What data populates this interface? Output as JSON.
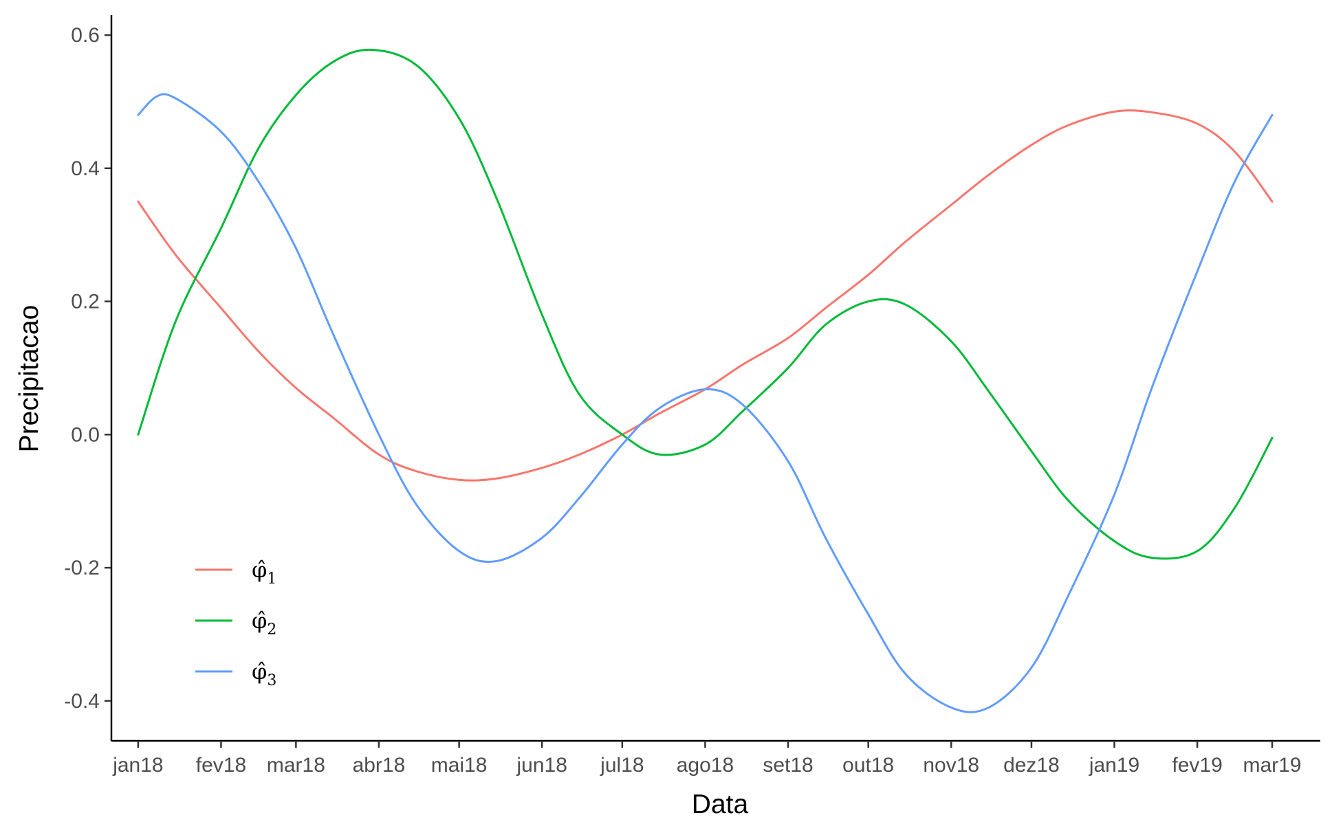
{
  "chart_data": {
    "type": "line",
    "xlabel": "Data",
    "ylabel": "Precipitacao",
    "x_ticks": [
      "jan18",
      "fev18",
      "mar18",
      "abr18",
      "mai18",
      "jun18",
      "jul18",
      "ago18",
      "set18",
      "out18",
      "nov18",
      "dez18",
      "jan19",
      "fev19",
      "mar19"
    ],
    "x_tick_dates": [
      "2018-01-01",
      "2018-02-01",
      "2018-03-01",
      "2018-04-01",
      "2018-05-01",
      "2018-06-01",
      "2018-07-01",
      "2018-08-01",
      "2018-09-01",
      "2018-10-01",
      "2018-11-01",
      "2018-12-01",
      "2019-01-01",
      "2019-02-01",
      "2019-03-01"
    ],
    "y_ticks": [
      "-0.4",
      "-0.2",
      "0.0",
      "0.2",
      "0.4",
      "0.6"
    ],
    "ylim": [
      -0.46,
      0.63
    ],
    "xlim": [
      "2017-12-22",
      "2019-03-19"
    ],
    "grid": false,
    "legend_position": "bottom-left",
    "series": [
      {
        "name": "φ̂1",
        "color": "#F8766D",
        "x": [
          "2018-01-01",
          "2018-01-15",
          "2018-02-01",
          "2018-02-15",
          "2018-03-01",
          "2018-03-15",
          "2018-04-01",
          "2018-04-15",
          "2018-05-01",
          "2018-05-15",
          "2018-06-01",
          "2018-06-15",
          "2018-07-01",
          "2018-07-15",
          "2018-08-01",
          "2018-08-15",
          "2018-09-01",
          "2018-09-15",
          "2018-10-01",
          "2018-10-15",
          "2018-11-01",
          "2018-11-15",
          "2018-12-01",
          "2018-12-15",
          "2019-01-01",
          "2019-01-15",
          "2019-02-01",
          "2019-02-15",
          "2019-03-01"
        ],
        "y": [
          0.35,
          0.27,
          0.19,
          0.125,
          0.07,
          0.025,
          -0.03,
          -0.055,
          -0.068,
          -0.066,
          -0.05,
          -0.03,
          0.0,
          0.032,
          0.068,
          0.105,
          0.145,
          0.19,
          0.24,
          0.29,
          0.345,
          0.39,
          0.435,
          0.465,
          0.485,
          0.484,
          0.467,
          0.425,
          0.35
        ]
      },
      {
        "name": "φ̂2",
        "color": "#00BA38",
        "x": [
          "2018-01-01",
          "2018-01-15",
          "2018-02-01",
          "2018-02-15",
          "2018-03-01",
          "2018-03-15",
          "2018-03-29",
          "2018-04-15",
          "2018-05-01",
          "2018-05-15",
          "2018-06-01",
          "2018-06-15",
          "2018-07-01",
          "2018-07-15",
          "2018-08-01",
          "2018-08-15",
          "2018-09-01",
          "2018-09-15",
          "2018-10-01",
          "2018-10-15",
          "2018-11-01",
          "2018-11-15",
          "2018-12-01",
          "2018-12-15",
          "2019-01-01",
          "2019-01-15",
          "2019-02-01",
          "2019-02-15",
          "2019-03-01"
        ],
        "y": [
          0.0,
          0.17,
          0.31,
          0.43,
          0.51,
          0.56,
          0.578,
          0.555,
          0.475,
          0.355,
          0.18,
          0.06,
          0.0,
          -0.03,
          -0.015,
          0.035,
          0.1,
          0.165,
          0.2,
          0.195,
          0.14,
          0.065,
          -0.025,
          -0.1,
          -0.16,
          -0.185,
          -0.175,
          -0.11,
          -0.005
        ]
      },
      {
        "name": "φ̂3",
        "color": "#619CFF",
        "x": [
          "2018-01-01",
          "2018-01-08",
          "2018-01-15",
          "2018-02-01",
          "2018-02-15",
          "2018-03-01",
          "2018-03-15",
          "2018-04-01",
          "2018-04-15",
          "2018-05-01",
          "2018-05-15",
          "2018-06-01",
          "2018-06-15",
          "2018-07-01",
          "2018-07-15",
          "2018-08-01",
          "2018-08-15",
          "2018-09-01",
          "2018-09-15",
          "2018-10-01",
          "2018-10-15",
          "2018-11-01",
          "2018-11-15",
          "2018-12-01",
          "2018-12-15",
          "2019-01-01",
          "2019-01-15",
          "2019-02-01",
          "2019-02-15",
          "2019-03-01"
        ],
        "y": [
          0.48,
          0.508,
          0.505,
          0.455,
          0.38,
          0.28,
          0.15,
          0.0,
          -0.105,
          -0.175,
          -0.19,
          -0.155,
          -0.095,
          -0.015,
          0.04,
          0.068,
          0.045,
          -0.04,
          -0.155,
          -0.27,
          -0.36,
          -0.41,
          -0.41,
          -0.35,
          -0.24,
          -0.09,
          0.07,
          0.245,
          0.38,
          0.48
        ]
      }
    ]
  }
}
